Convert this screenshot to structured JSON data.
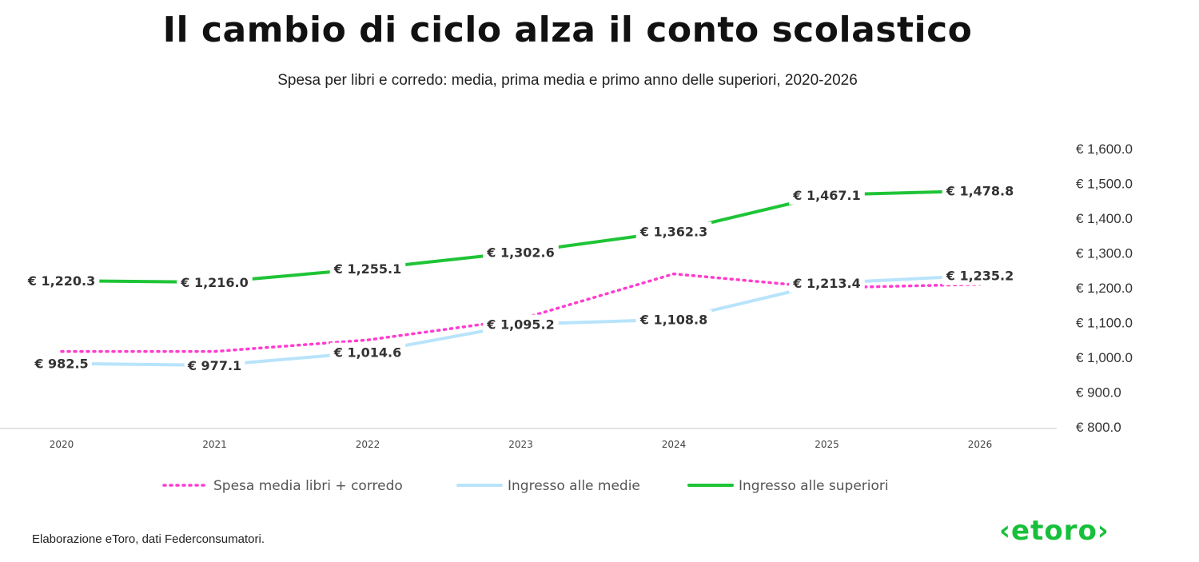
{
  "title": "Il cambio di ciclo alza il conto scolastico",
  "subtitle": "Spesa per libri e corredo: media, prima media e primo anno delle superiori, 2020-2026",
  "footer": "Elaborazione eToro, dati Federconsumatori.",
  "logo": "‹etoro›",
  "chart_data": {
    "type": "line",
    "categories": [
      "2020",
      "2021",
      "2022",
      "2023",
      "2024",
      "2025",
      "2026"
    ],
    "ylim": [
      800,
      1600
    ],
    "yticks": [
      800,
      900,
      1000,
      1100,
      1200,
      1300,
      1400,
      1500,
      1600
    ],
    "ytick_labels": [
      "€ 800.0",
      "€ 900.0",
      "€ 1,000.0",
      "€ 1,100.0",
      "€ 1,200.0",
      "€ 1,300.0",
      "€ 1,400.0",
      "€ 1,500.0",
      "€ 1,600.0"
    ],
    "y_axis_side": "right",
    "grid": false,
    "legend_position": "bottom",
    "series": [
      {
        "name": "Spesa media libri + corredo",
        "color": "#ff3ccf",
        "style": "dotted",
        "values": [
          1017,
          1017,
          1050,
          1110,
          1240,
          1200,
          1210
        ],
        "labels": []
      },
      {
        "name": "Ingresso alle medie",
        "color": "#b8e4fb",
        "style": "solid",
        "values": [
          982.5,
          977.1,
          1014.6,
          1095.2,
          1108.8,
          1213.4,
          1235.2
        ],
        "labels": [
          "€ 982.5",
          "€ 977.1",
          "€ 1,014.6",
          "€ 1,095.2",
          "€ 1,108.8",
          "€ 1,213.4",
          "€ 1,235.2"
        ]
      },
      {
        "name": "Ingresso alle superiori",
        "color": "#1ec436",
        "style": "solid",
        "values": [
          1220.3,
          1216.0,
          1255.1,
          1302.6,
          1362.3,
          1467.1,
          1478.8
        ],
        "labels": [
          "€ 1,220.3",
          "€ 1,216.0",
          "€ 1,255.1",
          "€ 1,302.6",
          "€ 1,362.3",
          "€ 1,467.1",
          "€ 1,478.8"
        ]
      }
    ]
  }
}
